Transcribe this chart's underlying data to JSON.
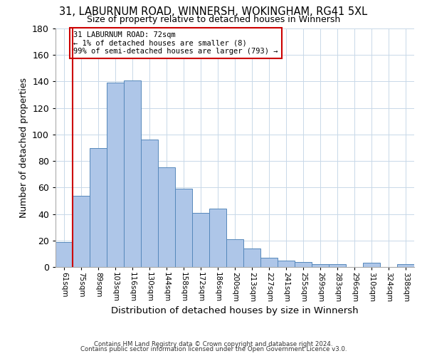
{
  "title1": "31, LABURNUM ROAD, WINNERSH, WOKINGHAM, RG41 5XL",
  "title2": "Size of property relative to detached houses in Winnersh",
  "xlabel": "Distribution of detached houses by size in Winnersh",
  "ylabel": "Number of detached properties",
  "bar_labels": [
    "61sqm",
    "75sqm",
    "89sqm",
    "103sqm",
    "116sqm",
    "130sqm",
    "144sqm",
    "158sqm",
    "172sqm",
    "186sqm",
    "200sqm",
    "213sqm",
    "227sqm",
    "241sqm",
    "255sqm",
    "269sqm",
    "283sqm",
    "296sqm",
    "310sqm",
    "324sqm",
    "338sqm"
  ],
  "bar_values": [
    19,
    54,
    90,
    139,
    141,
    96,
    75,
    59,
    41,
    44,
    21,
    14,
    7,
    5,
    4,
    2,
    2,
    0,
    3,
    0,
    2
  ],
  "bar_color": "#aec6e8",
  "bar_edge_color": "#5588bb",
  "ylim": [
    0,
    180
  ],
  "yticks": [
    0,
    20,
    40,
    60,
    80,
    100,
    120,
    140,
    160,
    180
  ],
  "reference_line_color": "#cc0000",
  "annotation_line1": "31 LABURNUM ROAD: 72sqm",
  "annotation_line2": "← 1% of detached houses are smaller (8)",
  "annotation_line3": "99% of semi-detached houses are larger (793) →",
  "annotation_box_color": "#cc0000",
  "footer1": "Contains HM Land Registry data © Crown copyright and database right 2024.",
  "footer2": "Contains public sector information licensed under the Open Government Licence v3.0.",
  "bg_color": "#ffffff",
  "grid_color": "#c8d8e8"
}
